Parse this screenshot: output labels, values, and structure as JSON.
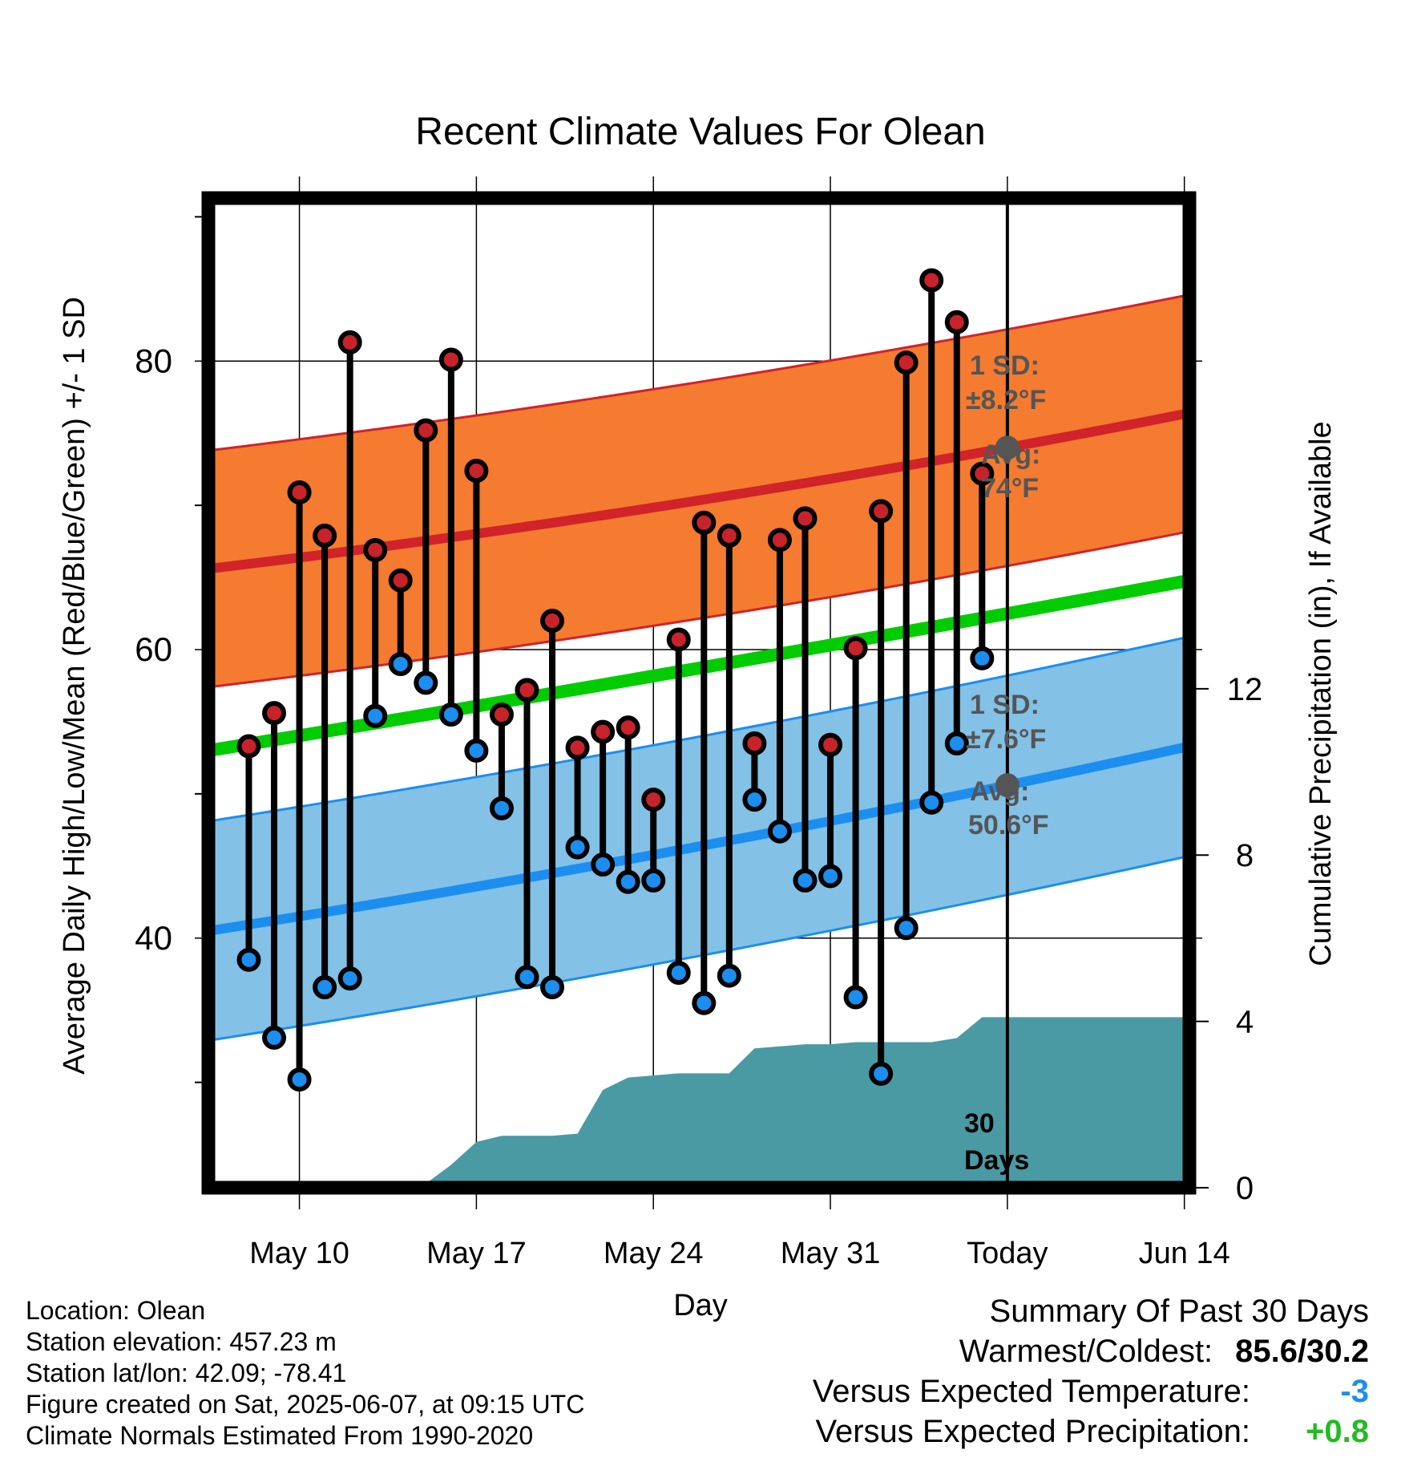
{
  "chart_data": {
    "type": "line",
    "title": "Recent Climate Values For Olean",
    "xlabel": "Day",
    "ylabel": "Average Daily High/Low/Mean (Red/Blue/Green) +/- 1 SD",
    "y2label": "Cumulative Precipitation (in), If Available",
    "ylim": [
      22.7,
      91.3
    ],
    "y2lim": [
      0,
      23.8
    ],
    "xlim": [
      -1.6,
      37.2
    ],
    "x_tick_labels": [
      "May 10",
      "May 17",
      "May 24",
      "May 31",
      "Today",
      "Jun 14"
    ],
    "y_ticks": [
      40,
      60,
      80
    ],
    "y2_ticks": [
      0,
      4,
      8,
      12
    ],
    "grid": true,
    "days": [
      "May 8",
      "May 9",
      "May 10",
      "May 11",
      "May 12",
      "May 13",
      "May 14",
      "May 15",
      "May 16",
      "May 17",
      "May 18",
      "May 19",
      "May 20",
      "May 21",
      "May 22",
      "May 23",
      "May 24",
      "May 25",
      "May 26",
      "May 27",
      "May 28",
      "May 29",
      "May 30",
      "May 31",
      "Jun 1",
      "Jun 2",
      "Jun 3",
      "Jun 4",
      "Jun 5",
      "Jun 6"
    ],
    "highs": [
      53.3,
      55.6,
      70.9,
      67.9,
      81.3,
      66.9,
      64.8,
      75.2,
      80.1,
      72.4,
      55.5,
      57.2,
      62.0,
      53.2,
      54.3,
      54.6,
      49.6,
      60.7,
      68.8,
      67.9,
      53.5,
      67.6,
      69.1,
      53.4,
      60.1,
      69.6,
      79.9,
      85.6,
      82.7,
      72.2
    ],
    "lows": [
      38.5,
      33.1,
      30.2,
      36.6,
      37.2,
      55.4,
      59.0,
      57.7,
      55.5,
      53.0,
      49.0,
      37.3,
      36.6,
      46.3,
      45.1,
      43.9,
      44.0,
      37.6,
      35.5,
      37.4,
      49.6,
      47.4,
      44.0,
      44.3,
      35.9,
      30.6,
      40.7,
      49.4,
      53.5,
      59.4
    ],
    "normal_high": {
      "start": 65.6,
      "today": 74.0,
      "end": 76.4
    },
    "normal_high_sd": 8.2,
    "normal_low": {
      "start": 40.5,
      "today": 50.6,
      "end": 53.3
    },
    "normal_low_sd": 7.6,
    "normal_mean": {
      "start": 53.0,
      "today": 62.5,
      "end": 64.8
    },
    "precip_cumulative": [
      0,
      0,
      0,
      0,
      0,
      0.03,
      0.07,
      0.1,
      0.55,
      1.1,
      1.25,
      1.25,
      1.25,
      1.3,
      2.35,
      2.65,
      2.7,
      2.75,
      2.75,
      2.75,
      3.35,
      3.4,
      3.45,
      3.45,
      3.5,
      3.5,
      3.5,
      3.5,
      3.6,
      4.1
    ],
    "precip_total": 4.1,
    "colors": {
      "high_band": "#f47b2f",
      "high_line": "#d0232a",
      "low_band": "#83c1e6",
      "low_line": "#1b8ef0",
      "mean_line": "#00cc00",
      "precip": "#4a9aa3",
      "high_dot": "#c8232a",
      "low_dot": "#1b8ef0",
      "annot": "#555555"
    }
  },
  "annotations": {
    "high_sd_label": "1 SD:",
    "high_sd_value": "±8.2°F",
    "high_avg_label": "Avg:",
    "high_avg_value": "74°F",
    "low_sd_label": "1 SD:",
    "low_sd_value": "±7.6°F",
    "low_avg_label": "Avg:",
    "low_avg_value": "50.6°F",
    "days_count": "30",
    "days_word": "Days"
  },
  "info": {
    "location": "Location: Olean",
    "elevation": "Station elevation: 457.23 m",
    "latlon": "Station lat/lon: 42.09; -78.41",
    "created": "Figure created on Sat, 2025-06-07, at 09:15 UTC",
    "normals": "Climate Normals Estimated From 1990-2020"
  },
  "summary": {
    "title": "Summary Of Past 30 Days",
    "warm_cold_label": "Warmest/Coldest:",
    "warm_cold_value": "85.6/30.2",
    "temp_label": "Versus Expected Temperature:",
    "temp_value": "-3",
    "temp_color": "#1b8ef0",
    "precip_label": "Versus Expected Precipitation:",
    "precip_value": "+0.8",
    "precip_color": "#22bb22"
  }
}
